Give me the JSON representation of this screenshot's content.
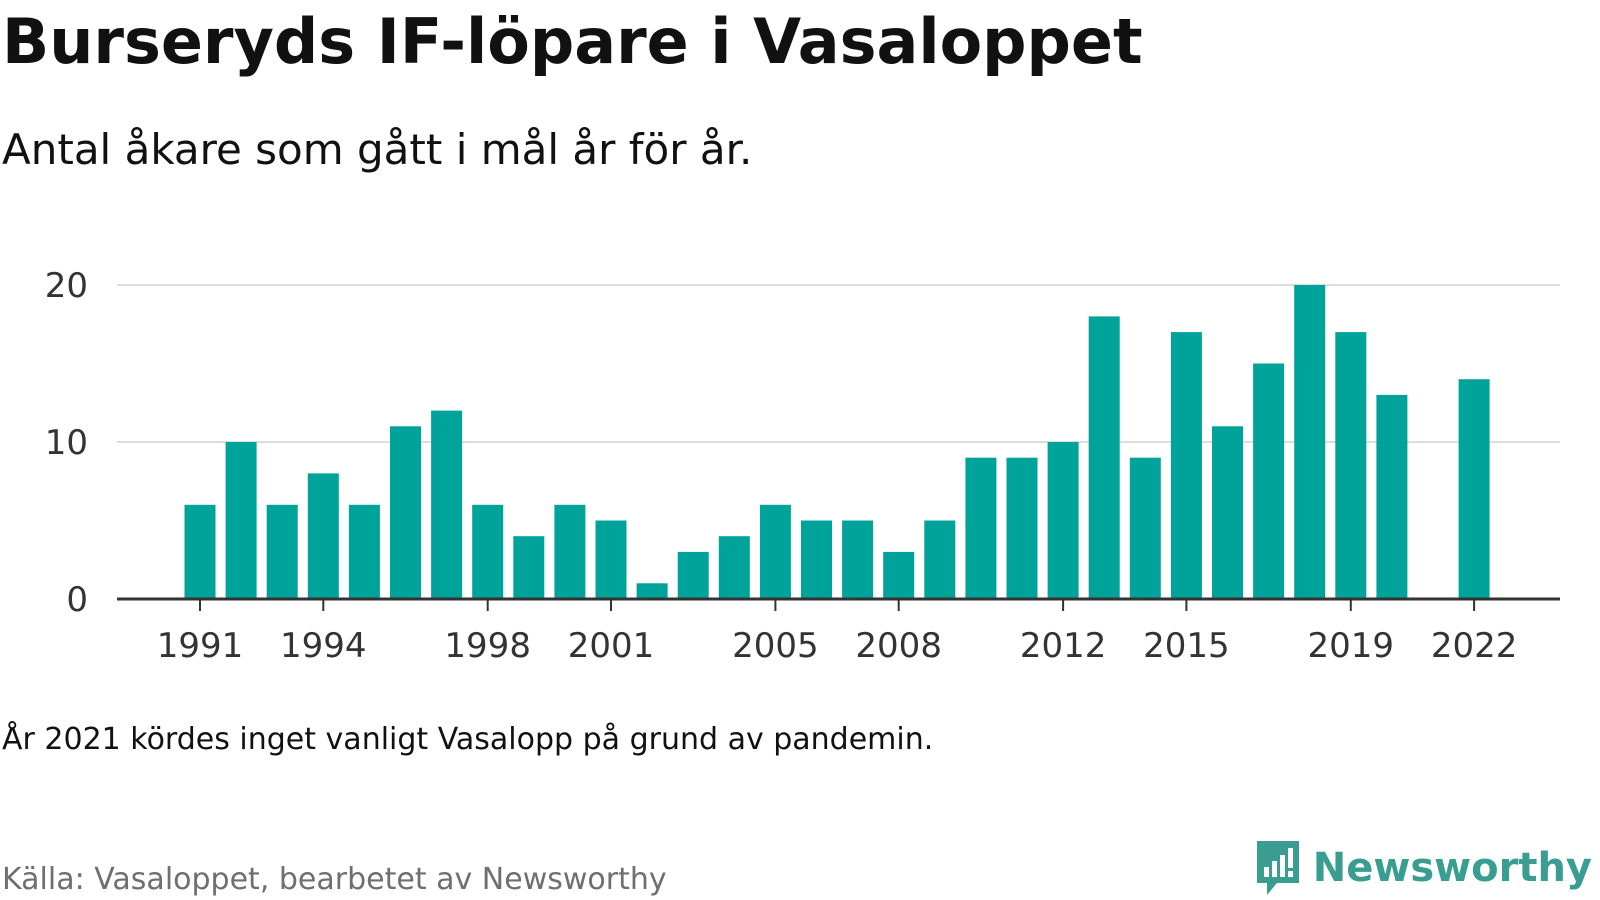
{
  "title": "Burseryds IF-löpare i Vasaloppet",
  "subtitle": "Antal åkare som gått i mål år för år.",
  "note": "År 2021 kördes inget vanligt Vasalopp på grund av pandemin.",
  "source": "Källa: Vasaloppet, bearbetet av Newsworthy",
  "brand": {
    "name": "Newsworthy",
    "logo_icon": "newsworthy-chart-bubble-icon",
    "color": "#3a9d92"
  },
  "chart_data": {
    "type": "bar",
    "x": [
      1991,
      1992,
      1993,
      1994,
      1995,
      1996,
      1997,
      1998,
      1999,
      2000,
      2001,
      2002,
      2003,
      2004,
      2005,
      2006,
      2007,
      2008,
      2009,
      2010,
      2011,
      2012,
      2013,
      2014,
      2015,
      2016,
      2017,
      2018,
      2019,
      2020,
      2022
    ],
    "values": [
      6,
      10,
      6,
      8,
      6,
      11,
      12,
      6,
      4,
      6,
      5,
      1,
      3,
      4,
      6,
      5,
      5,
      3,
      5,
      9,
      9,
      10,
      18,
      9,
      17,
      11,
      15,
      20,
      17,
      13,
      14
    ],
    "x_ticks": [
      "1991",
      "1994",
      "1998",
      "2001",
      "2005",
      "2008",
      "2012",
      "2015",
      "2019",
      "2022"
    ],
    "y_ticks": [
      "0",
      "10",
      "20"
    ],
    "ylim": [
      0,
      20
    ],
    "xlim": [
      1991,
      2022
    ],
    "grid": true,
    "bar_color": "#00a39a"
  }
}
